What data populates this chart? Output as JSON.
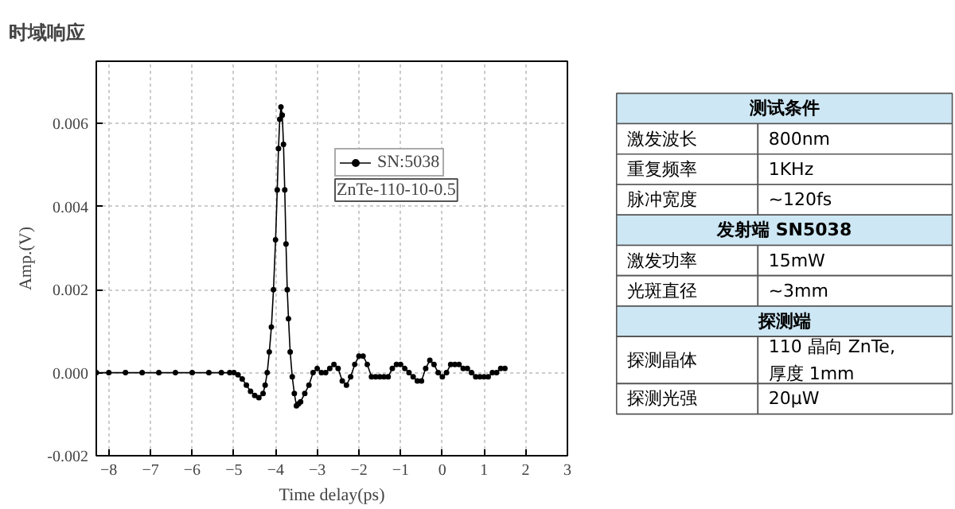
{
  "chart_data": [
    {
      "type": "line",
      "title": "时域响应",
      "xlabel": "Time delay(ps)",
      "ylabel": "Amp.(V)",
      "x": [
        -8.3,
        -8.0,
        -7.6,
        -7.2,
        -6.8,
        -6.4,
        -6.0,
        -5.6,
        -5.3,
        -5.1,
        -5.0,
        -4.9,
        -4.8,
        -4.7,
        -4.6,
        -4.5,
        -4.4,
        -4.3,
        -4.25,
        -4.2,
        -4.15,
        -4.1,
        -4.05,
        -4.0,
        -3.96,
        -3.93,
        -3.9,
        -3.87,
        -3.84,
        -3.81,
        -3.78,
        -3.75,
        -3.72,
        -3.69,
        -3.65,
        -3.6,
        -3.55,
        -3.5,
        -3.45,
        -3.4,
        -3.3,
        -3.2,
        -3.1,
        -3.0,
        -2.9,
        -2.8,
        -2.7,
        -2.6,
        -2.5,
        -2.4,
        -2.3,
        -2.2,
        -2.1,
        -2.0,
        -1.9,
        -1.8,
        -1.7,
        -1.6,
        -1.5,
        -1.4,
        -1.3,
        -1.2,
        -1.1,
        -1.0,
        -0.9,
        -0.8,
        -0.7,
        -0.6,
        -0.5,
        -0.4,
        -0.3,
        -0.2,
        -0.1,
        0.0,
        0.1,
        0.2,
        0.3,
        0.4,
        0.5,
        0.6,
        0.7,
        0.8,
        0.9,
        1.0,
        1.1,
        1.2,
        1.3,
        1.4,
        1.5
      ],
      "series": [
        {
          "name": "SN:5038",
          "color": "#000000",
          "values": [
            0.0,
            0.0,
            0.0,
            0.0,
            0.0,
            0.0,
            0.0,
            0.0,
            0.0,
            0.0,
            0.0,
            -5e-05,
            -0.00015,
            -0.0003,
            -0.00045,
            -0.00055,
            -0.0006,
            -0.0005,
            -0.0003,
            0.0,
            0.0005,
            0.0011,
            0.002,
            0.0032,
            0.0044,
            0.0054,
            0.0061,
            0.0064,
            0.0062,
            0.0055,
            0.0044,
            0.0031,
            0.002,
            0.0013,
            0.0005,
            -0.0001,
            -0.0005,
            -0.0008,
            -0.00075,
            -0.0007,
            -0.0005,
            -0.0003,
            0.0,
            0.0001,
            0.0,
            0.0,
            0.0001,
            0.0002,
            0.0001,
            -0.0002,
            -0.0003,
            -0.0001,
            0.0002,
            0.0004,
            0.0004,
            0.0002,
            -0.0001,
            -0.0001,
            -0.0001,
            -0.0001,
            -0.0001,
            0.0001,
            0.0002,
            0.0002,
            0.0001,
            0.0,
            -0.0001,
            -0.0002,
            -0.0002,
            0.0001,
            0.0003,
            0.0002,
            0.0,
            -0.0001,
            0.0,
            0.0002,
            0.0002,
            0.0002,
            0.0001,
            0.0001,
            0.0,
            -0.0001,
            -0.0001,
            -0.0001,
            -0.0001,
            0.0,
            0.0,
            0.0001,
            0.0001
          ]
        }
      ],
      "annotations": [
        "ZnTe-110-10-0.5"
      ],
      "xlim": [
        -8.3,
        3.0
      ],
      "ylim": [
        -0.002,
        0.0075
      ],
      "xticks": [
        -8,
        -7,
        -6,
        -5,
        -4,
        -3,
        -2,
        -1,
        0,
        1,
        2,
        3
      ],
      "yticks": [
        {
          "value": -0.002,
          "label": "-0.002"
        },
        {
          "value": 0,
          "label": "0.000"
        },
        {
          "value": 0.002,
          "label": "0.002"
        },
        {
          "value": 0.004,
          "label": "0.004"
        },
        {
          "value": 0.006,
          "label": "0.006"
        }
      ],
      "grid": true,
      "legend": "top right",
      "marker": "circle",
      "line_style": "solid"
    },
    {
      "type": "other",
      "categories": [
        "测试条件",
        "激发波长",
        "重复频率",
        "脉冲宽度",
        "发射端 SN5038",
        "激发功率",
        "光斑直径",
        "探测端",
        "探测晶体",
        "探测光强"
      ],
      "value_labels": [
        null,
        "800nm",
        "1KHz",
        "~120fs",
        null,
        "15mW",
        "~3mm",
        null,
        "110 晶向 ZnTe,\n厚度 1mm",
        "20μW"
      ]
    }
  ]
}
